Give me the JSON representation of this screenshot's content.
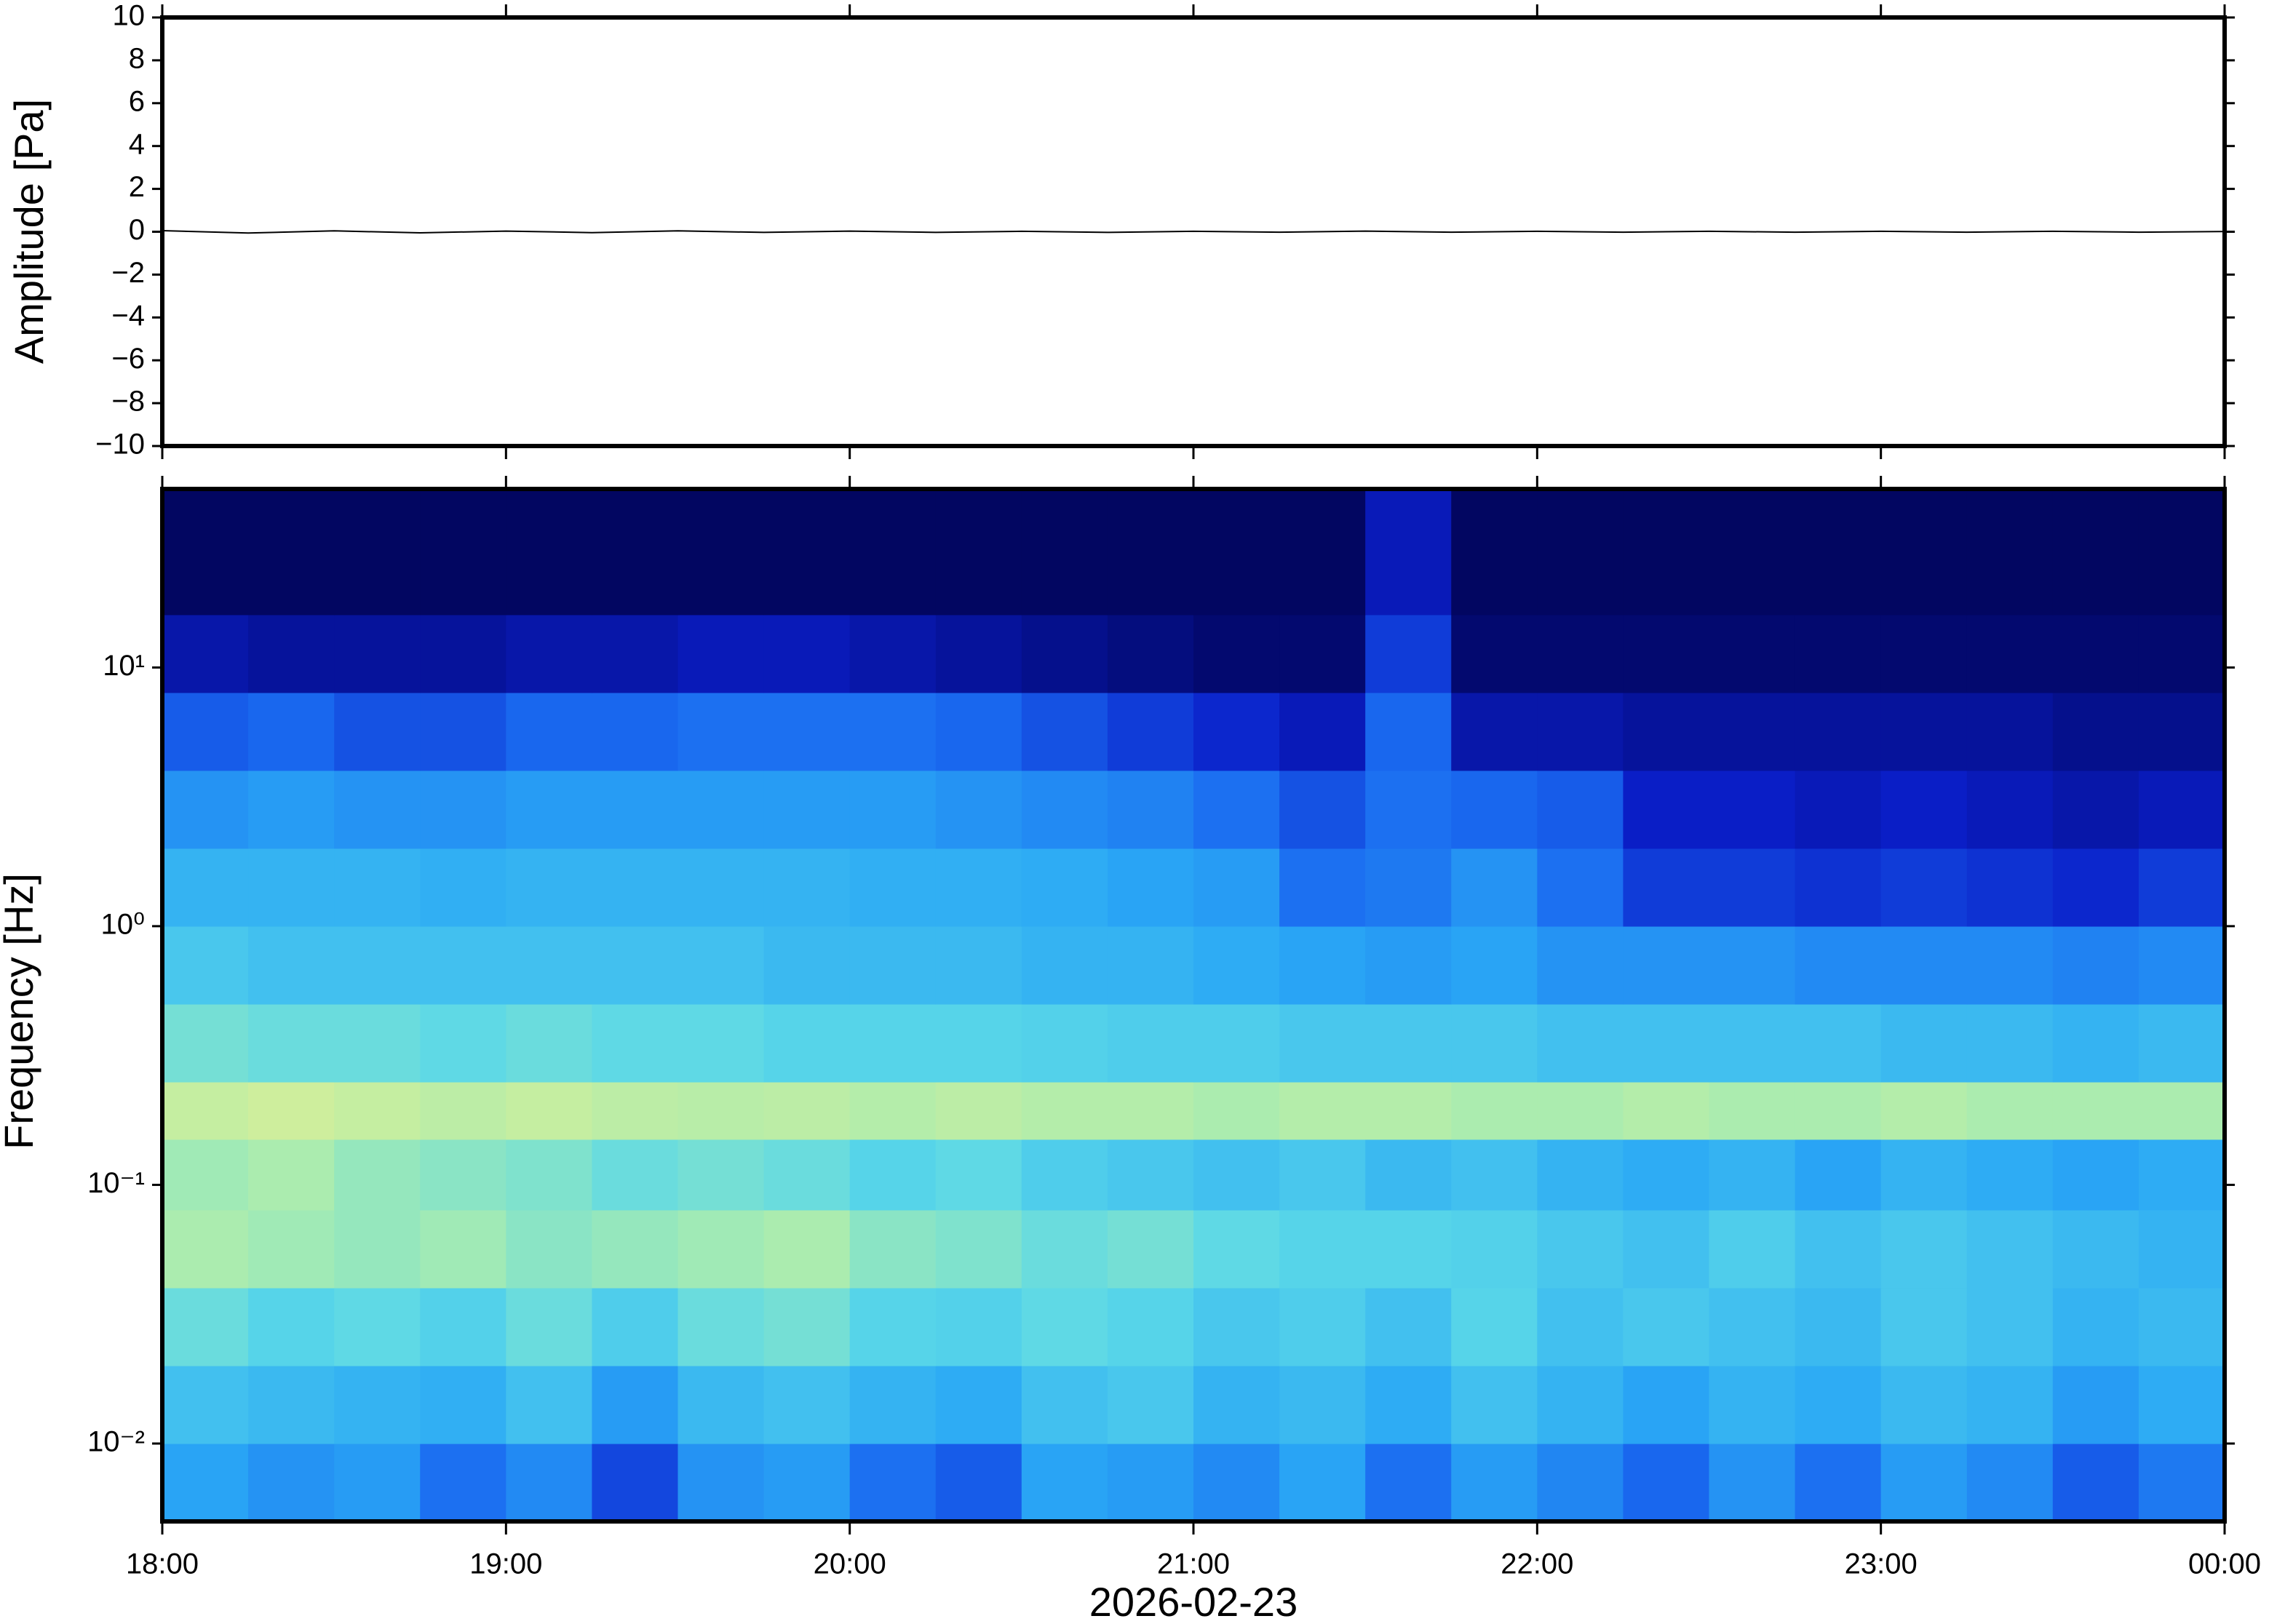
{
  "chart_data": [
    {
      "type": "line",
      "ylabel": "Amplitude [Pa]",
      "color": "#000000",
      "xlim": [
        18,
        24
      ],
      "ylim": [
        -10,
        10
      ],
      "yticks": [
        {
          "value": -10,
          "label": "−10"
        },
        {
          "value": -8,
          "label": "−8"
        },
        {
          "value": -6,
          "label": "−6"
        },
        {
          "value": -4,
          "label": "−4"
        },
        {
          "value": -2,
          "label": "−2"
        },
        0,
        2,
        4,
        6,
        8,
        10
      ],
      "x": [
        18,
        18.25,
        18.5,
        18.75,
        19,
        19.25,
        19.5,
        19.75,
        20,
        20.25,
        20.5,
        20.75,
        21,
        21.25,
        21.5,
        21.75,
        22,
        22.25,
        22.5,
        22.75,
        23,
        23.25,
        23.5,
        23.75,
        24
      ],
      "values": [
        0.05,
        -0.06,
        0.04,
        -0.05,
        0.03,
        -0.04,
        0.04,
        -0.03,
        0.03,
        -0.03,
        0.02,
        -0.03,
        0.02,
        -0.02,
        0.03,
        -0.02,
        0.02,
        -0.02,
        0.02,
        -0.02,
        0.02,
        -0.02,
        0.02,
        -0.02,
        0.01
      ]
    },
    {
      "type": "heatmap",
      "ylabel": "Frequency [Hz]",
      "xlabel": "2026-02-23",
      "log_y": true,
      "xlim": [
        18,
        24
      ],
      "ylim": [
        0.005,
        49
      ],
      "xticks": [
        {
          "value": 18,
          "label": "18:00"
        },
        {
          "value": 19,
          "label": "19:00"
        },
        {
          "value": 20,
          "label": "20:00"
        },
        {
          "value": 21,
          "label": "21:00"
        },
        {
          "value": 22,
          "label": "22:00"
        },
        {
          "value": 23,
          "label": "23:00"
        },
        {
          "value": 24,
          "label": "00:00"
        }
      ],
      "yticks": [
        {
          "value": 0.01,
          "label": "10⁻²"
        },
        {
          "value": 0.1,
          "label": "10⁻¹"
        },
        {
          "value": 1,
          "label": "10⁰"
        },
        {
          "value": 10,
          "label": "10¹"
        }
      ],
      "zlim": [
        0,
        1
      ],
      "colormap": [
        "#020661",
        "#0a1ec8",
        "#1a6af0",
        "#2aa8f5",
        "#5ad8e8",
        "#a8ecb0",
        "#e8f090",
        "#f0b070"
      ],
      "x_bins": [
        18,
        18.25,
        18.5,
        18.75,
        19,
        19.25,
        19.5,
        19.75,
        20,
        20.25,
        20.5,
        20.75,
        21,
        21.25,
        21.5,
        21.75,
        22,
        22.25,
        22.5,
        22.75,
        23,
        23.25,
        23.5,
        23.75,
        24
      ],
      "y_bins": [
        0.005,
        0.01,
        0.02,
        0.04,
        0.08,
        0.15,
        0.25,
        0.5,
        1,
        2,
        4,
        8,
        16,
        49
      ],
      "values": [
        [
          0.42,
          0.38,
          0.4,
          0.3,
          0.36,
          0.22,
          0.38,
          0.4,
          0.3,
          0.26,
          0.42,
          0.4,
          0.36,
          0.42,
          0.3,
          0.4,
          0.35,
          0.28,
          0.38,
          0.3,
          0.4,
          0.36,
          0.26,
          0.32
        ],
        [
          0.5,
          0.48,
          0.46,
          0.45,
          0.5,
          0.4,
          0.48,
          0.5,
          0.46,
          0.44,
          0.5,
          0.52,
          0.46,
          0.48,
          0.44,
          0.5,
          0.46,
          0.42,
          0.46,
          0.44,
          0.48,
          0.46,
          0.4,
          0.44
        ],
        [
          0.6,
          0.56,
          0.58,
          0.55,
          0.6,
          0.54,
          0.6,
          0.62,
          0.56,
          0.55,
          0.58,
          0.56,
          0.52,
          0.54,
          0.5,
          0.56,
          0.5,
          0.52,
          0.5,
          0.48,
          0.52,
          0.5,
          0.46,
          0.48
        ],
        [
          0.72,
          0.7,
          0.68,
          0.7,
          0.66,
          0.68,
          0.7,
          0.72,
          0.66,
          0.64,
          0.6,
          0.62,
          0.58,
          0.56,
          0.56,
          0.55,
          0.52,
          0.5,
          0.54,
          0.5,
          0.52,
          0.5,
          0.48,
          0.46
        ],
        [
          0.7,
          0.72,
          0.68,
          0.66,
          0.64,
          0.6,
          0.62,
          0.6,
          0.56,
          0.58,
          0.54,
          0.52,
          0.5,
          0.52,
          0.48,
          0.5,
          0.46,
          0.44,
          0.46,
          0.42,
          0.46,
          0.44,
          0.42,
          0.44
        ],
        [
          0.78,
          0.8,
          0.78,
          0.76,
          0.78,
          0.76,
          0.75,
          0.76,
          0.74,
          0.76,
          0.74,
          0.74,
          0.72,
          0.74,
          0.74,
          0.72,
          0.72,
          0.74,
          0.72,
          0.72,
          0.74,
          0.72,
          0.72,
          0.72
        ],
        [
          0.62,
          0.6,
          0.6,
          0.58,
          0.6,
          0.58,
          0.58,
          0.56,
          0.56,
          0.56,
          0.55,
          0.54,
          0.54,
          0.52,
          0.52,
          0.52,
          0.5,
          0.5,
          0.5,
          0.5,
          0.48,
          0.48,
          0.46,
          0.48
        ],
        [
          0.52,
          0.5,
          0.5,
          0.5,
          0.5,
          0.5,
          0.5,
          0.48,
          0.48,
          0.48,
          0.46,
          0.46,
          0.44,
          0.42,
          0.4,
          0.42,
          0.38,
          0.38,
          0.38,
          0.36,
          0.36,
          0.36,
          0.34,
          0.36
        ],
        [
          0.46,
          0.46,
          0.46,
          0.45,
          0.46,
          0.46,
          0.46,
          0.46,
          0.45,
          0.45,
          0.44,
          0.42,
          0.4,
          0.3,
          0.32,
          0.38,
          0.3,
          0.2,
          0.2,
          0.18,
          0.2,
          0.18,
          0.16,
          0.2
        ],
        [
          0.38,
          0.4,
          0.38,
          0.38,
          0.4,
          0.4,
          0.4,
          0.4,
          0.4,
          0.38,
          0.36,
          0.34,
          0.3,
          0.24,
          0.3,
          0.28,
          0.26,
          0.14,
          0.14,
          0.12,
          0.14,
          0.12,
          0.1,
          0.12
        ],
        [
          0.26,
          0.28,
          0.24,
          0.24,
          0.28,
          0.28,
          0.3,
          0.3,
          0.3,
          0.28,
          0.24,
          0.2,
          0.16,
          0.12,
          0.28,
          0.1,
          0.1,
          0.08,
          0.08,
          0.08,
          0.08,
          0.08,
          0.06,
          0.06
        ],
        [
          0.1,
          0.08,
          0.08,
          0.08,
          0.1,
          0.1,
          0.12,
          0.12,
          0.1,
          0.08,
          0.06,
          0.04,
          0.02,
          0.02,
          0.2,
          0.02,
          0.02,
          0.02,
          0.02,
          0.02,
          0.02,
          0.02,
          0.02,
          0.02
        ],
        [
          0,
          0,
          0,
          0,
          0,
          0,
          0,
          0,
          0,
          0,
          0,
          0,
          0,
          0,
          0.12,
          0,
          0,
          0,
          0,
          0,
          0,
          0,
          0,
          0
        ]
      ]
    }
  ]
}
